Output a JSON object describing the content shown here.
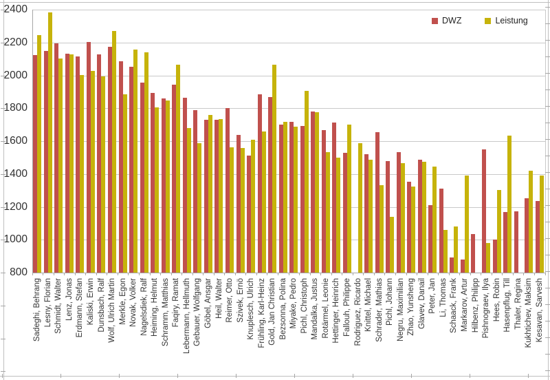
{
  "chart_data": {
    "type": "bar",
    "title": "",
    "xlabel": "",
    "ylabel": "",
    "ylim": [
      800,
      2400
    ],
    "ytick_step": 200,
    "y_axis_ticks": [
      800,
      1000,
      1200,
      1400,
      1600,
      1800,
      2000,
      2200,
      2400
    ],
    "grid": true,
    "legend_position": "top-right",
    "categories": [
      "Sadeghi, Behrang",
      "Lesny, Florian",
      "Schmidt, Walter",
      "Lenz, Jonas",
      "Erdmann, Stefan",
      "Kaliski, Erwin",
      "Dunsbach, Ralf",
      "Wolf, Ulrich Martin",
      "Merkle, Egon",
      "Novak, Volker",
      "Nagelsdiek, Ralf",
      "Heiming, Helmut",
      "Schramm, Matthias",
      "Faqiry, Ramat",
      "Lebermann, Hellmuth",
      "Gebauer, Wolfgang",
      "Göbel, Ansgar",
      "Heil, Walter",
      "Reimer, Otto",
      "Szivek, Ernö",
      "Knuplesch, Ulrich",
      "Frühling, Karl-Heinz",
      "Gold, Jan Christian",
      "Bezsonna, Polina",
      "Miyake, Pedro",
      "Pichl, Christoph",
      "Mandalka, Justus",
      "Rotärmel, Leonie",
      "Hettinger, Heinrich",
      "Fallouh, Philippe",
      "Rodriguez, Ricardo",
      "Knittel, Michael",
      "Schrader, Mathias",
      "Pichl, Johann",
      "Negru, Maximilian",
      "Zhao, Yunsheng",
      "Glavev, Danail",
      "Peter, Jan",
      "Li, Thomas",
      "Schaack, Frank",
      "Markarov, Artur",
      "Hilbenz, Philipp",
      "Pishnograev, Ilya",
      "Hees, Robin",
      "Hasenpflug, Till",
      "Thaler, Regina",
      "Kukhtichev, Maksim",
      "Kesavan, Sarvesh"
    ],
    "series": [
      {
        "name": "DWZ",
        "color": "#C0504D",
        "values": [
          2125,
          2150,
          2195,
          2135,
          2115,
          2205,
          2130,
          2175,
          2085,
          2055,
          1955,
          1895,
          1860,
          1945,
          1865,
          1790,
          1730,
          1730,
          1800,
          1640,
          1515,
          1885,
          1870,
          1700,
          1720,
          1695,
          1780,
          1670,
          1715,
          1530,
          null,
          1520,
          1655,
          1480,
          1535,
          1355,
          1490,
          1210,
          1310,
          895,
          880,
          1035,
          1550,
          1000,
          1170,
          1175,
          1255,
          1235
        ]
      },
      {
        "name": "Leistung",
        "color": "#C6B30B",
        "values": [
          2245,
          2385,
          2105,
          2130,
          2005,
          2030,
          1995,
          2270,
          1885,
          2160,
          2140,
          1805,
          1850,
          2065,
          1680,
          1590,
          1760,
          1735,
          1565,
          1560,
          1610,
          1660,
          2065,
          1720,
          1690,
          1905,
          1775,
          1535,
          1500,
          1700,
          1590,
          1490,
          1335,
          1140,
          1465,
          1325,
          1475,
          1445,
          1060,
          1080,
          1390,
          null,
          980,
          1305,
          1635,
          null,
          1420,
          1390
        ]
      }
    ]
  },
  "colors": {
    "gridline": "#c9c9c9",
    "axis_text": "#2f2f2f",
    "background": "#ffffff"
  }
}
